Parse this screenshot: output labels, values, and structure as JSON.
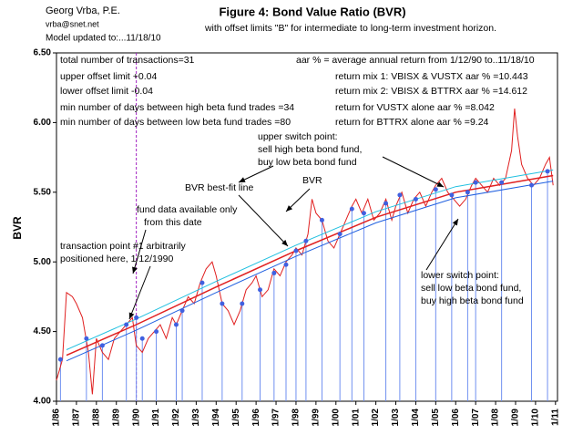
{
  "chart_data": {
    "type": "line",
    "header": [
      "Georg Vrba, P.E.",
      "vrba@snet.net",
      "Model updated to:...11/18/10"
    ],
    "title": "Figure 4: Bond Value Ratio (BVR)",
    "subtitle": "with offset limits \"B\" for intermediate to long-term investment horizon.",
    "ylabel": "BVR",
    "xlim": [
      1986,
      2011.1
    ],
    "ylim": [
      4.0,
      6.5
    ],
    "yticks": [
      {
        "value": 4.0,
        "label": "4.00"
      },
      {
        "value": 4.5,
        "label": "4.50"
      },
      {
        "value": 5.0,
        "label": "5.00"
      },
      {
        "value": 5.5,
        "label": "5.50"
      },
      {
        "value": 6.0,
        "label": "6.00"
      },
      {
        "value": 6.5,
        "label": "6.50"
      }
    ],
    "xticks": [
      {
        "value": 1986,
        "label": "1/86"
      },
      {
        "value": 1987,
        "label": "1/87"
      },
      {
        "value": 1988,
        "label": "1/88"
      },
      {
        "value": 1989,
        "label": "1/89"
      },
      {
        "value": 1990,
        "label": "1/90"
      },
      {
        "value": 1991,
        "label": "1/91"
      },
      {
        "value": 1992,
        "label": "1/92"
      },
      {
        "value": 1993,
        "label": "1/93"
      },
      {
        "value": 1994,
        "label": "1/94"
      },
      {
        "value": 1995,
        "label": "1/95"
      },
      {
        "value": 1996,
        "label": "1/96"
      },
      {
        "value": 1997,
        "label": "1/97"
      },
      {
        "value": 1998,
        "label": "1/98"
      },
      {
        "value": 1999,
        "label": "1/99"
      },
      {
        "value": 2000,
        "label": "1/00"
      },
      {
        "value": 2001,
        "label": "1/01"
      },
      {
        "value": 2002,
        "label": "1/02"
      },
      {
        "value": 2003,
        "label": "1/03"
      },
      {
        "value": 2004,
        "label": "1/04"
      },
      {
        "value": 2005,
        "label": "1/05"
      },
      {
        "value": 2006,
        "label": "1/06"
      },
      {
        "value": 2007,
        "label": "1/07"
      },
      {
        "value": 2008,
        "label": "1/08"
      },
      {
        "value": 2009,
        "label": "1/09"
      },
      {
        "value": 2010,
        "label": "1/10"
      },
      {
        "value": 2011,
        "label": "1/11"
      }
    ],
    "series": [
      {
        "color": "#e02020",
        "width": 1,
        "x": [
          1986.0,
          1986.3,
          1986.5,
          1986.8,
          1987.0,
          1987.3,
          1987.6,
          1987.8,
          1988.0,
          1988.3,
          1988.6,
          1988.9,
          1989.2,
          1989.5,
          1989.8,
          1990.0,
          1990.3,
          1990.6,
          1990.9,
          1991.2,
          1991.5,
          1991.8,
          1992.0,
          1992.3,
          1992.6,
          1992.9,
          1993.2,
          1993.5,
          1993.8,
          1994.0,
          1994.3,
          1994.6,
          1994.9,
          1995.2,
          1995.5,
          1995.8,
          1996.0,
          1996.3,
          1996.6,
          1996.9,
          1997.2,
          1997.5,
          1997.8,
          1998.0,
          1998.3,
          1998.6,
          1998.8,
          1999.0,
          1999.3,
          1999.6,
          1999.9,
          2000.2,
          2000.5,
          2000.8,
          2001.0,
          2001.3,
          2001.6,
          2001.9,
          2002.2,
          2002.5,
          2002.8,
          2003.0,
          2003.3,
          2003.6,
          2003.9,
          2004.2,
          2004.5,
          2004.8,
          2005.0,
          2005.3,
          2005.6,
          2005.9,
          2006.2,
          2006.5,
          2006.8,
          2007.0,
          2007.3,
          2007.6,
          2007.9,
          2008.2,
          2008.5,
          2008.8,
          2008.95,
          2009.1,
          2009.3,
          2009.6,
          2009.9,
          2010.2,
          2010.5,
          2010.7,
          2010.88
        ],
        "values": [
          4.15,
          4.3,
          4.78,
          4.75,
          4.7,
          4.6,
          4.35,
          4.05,
          4.45,
          4.35,
          4.3,
          4.45,
          4.5,
          4.55,
          4.6,
          4.4,
          4.35,
          4.45,
          4.5,
          4.55,
          4.45,
          4.6,
          4.55,
          4.65,
          4.75,
          4.7,
          4.85,
          4.95,
          5.0,
          4.9,
          4.7,
          4.65,
          4.55,
          4.65,
          4.8,
          4.85,
          4.9,
          4.75,
          4.8,
          4.95,
          4.9,
          5.0,
          5.05,
          5.1,
          5.05,
          5.2,
          5.45,
          5.35,
          5.3,
          5.15,
          5.1,
          5.2,
          5.3,
          5.4,
          5.45,
          5.35,
          5.45,
          5.3,
          5.35,
          5.45,
          5.3,
          5.4,
          5.5,
          5.35,
          5.45,
          5.5,
          5.4,
          5.5,
          5.55,
          5.6,
          5.5,
          5.45,
          5.4,
          5.45,
          5.55,
          5.6,
          5.55,
          5.5,
          5.6,
          5.55,
          5.6,
          5.8,
          6.1,
          5.9,
          5.7,
          5.6,
          5.55,
          5.6,
          5.7,
          5.75,
          5.55
        ]
      },
      {
        "color": "#e02020",
        "width": 1.5,
        "x": [
          1986.5,
          1990,
          1994,
          1998,
          2002,
          2006,
          2010.88
        ],
        "values": [
          4.33,
          4.55,
          4.82,
          5.08,
          5.32,
          5.5,
          5.62
        ]
      },
      {
        "color": "#20c0e0",
        "width": 1,
        "x": [
          1986.5,
          1990,
          1994,
          1998,
          2002,
          2006,
          2010.88
        ],
        "values": [
          4.37,
          4.59,
          4.86,
          5.12,
          5.36,
          5.54,
          5.66
        ]
      },
      {
        "color": "#2060e0",
        "width": 1,
        "x": [
          1986.5,
          1990,
          1994,
          1998,
          2002,
          2006,
          2010.88
        ],
        "values": [
          4.29,
          4.51,
          4.78,
          5.04,
          5.28,
          5.46,
          5.58
        ]
      }
    ],
    "transactions": {
      "color": "#4060e0",
      "x": [
        1986.2,
        1987.5,
        1988.3,
        1989.5,
        1990.0,
        1990.3,
        1991.0,
        1992.0,
        1992.3,
        1993.3,
        1994.3,
        1995.3,
        1996.2,
        1996.9,
        1997.5,
        1998.0,
        1998.5,
        1999.3,
        2000.2,
        2000.8,
        2001.4,
        2002.5,
        2003.2,
        2004.0,
        2005.0,
        2005.8,
        2006.6,
        2007.0,
        2008.3,
        2009.8,
        2010.6
      ],
      "values": [
        4.3,
        4.45,
        4.4,
        4.55,
        4.6,
        4.45,
        4.5,
        4.55,
        4.65,
        4.85,
        4.7,
        4.7,
        4.8,
        4.92,
        4.98,
        5.08,
        5.15,
        5.3,
        5.2,
        5.38,
        5.35,
        5.42,
        5.48,
        5.45,
        5.52,
        5.48,
        5.5,
        5.57,
        5.57,
        5.55,
        5.65
      ]
    },
    "vline": {
      "x": 1990,
      "color": "#a020c0"
    },
    "annotations": [
      "total number of transactions=31",
      "upper offset limit +0.04",
      "lower offset limit  -0.04",
      "min number of days between high beta fund trades =34",
      "min number of days between low beta fund trades =80",
      "aar % = average annual return from 1/12/90 to..11/18/10",
      "return mix 1: VBISX & VUSTX aar % =10.443",
      "return mix 2: VBISX & BTTRX aar % =14.612",
      "return for VUSTX alone aar % =8.042",
      "return for BTTRX alone aar % =9.24",
      "upper switch point:",
      "sell high beta bond fund,",
      "buy low beta bond fund",
      "BVR best-fit line",
      "BVR",
      "fund data available only",
      "from this date",
      "transaction point #1 arbitrarily",
      "positioned here, 1/12/1990",
      "lower switch point:",
      "sell low beta bond fund,",
      "buy high beta bond fund"
    ]
  }
}
